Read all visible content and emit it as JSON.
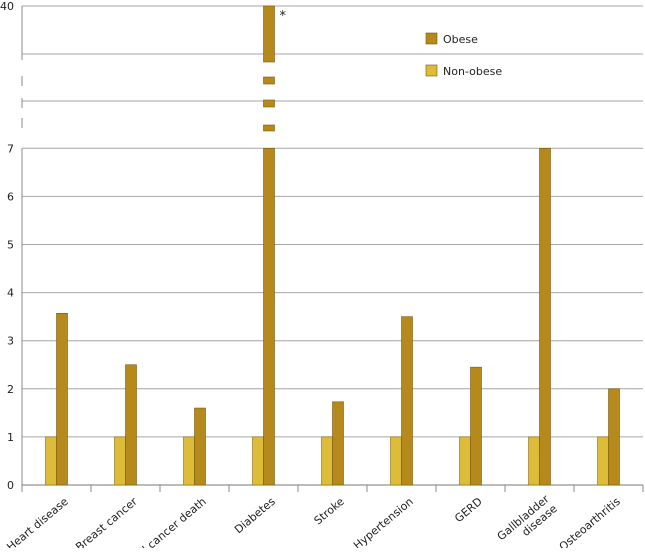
{
  "chart_data": {
    "type": "bar",
    "title": "",
    "xlabel": "",
    "ylabel": "",
    "categories": [
      "Heart disease",
      "Breast cancer",
      "All cancer death",
      "Diabetes",
      "Stroke",
      "Hypertension",
      "GERD",
      "Gallbladder disease",
      "Osteoarthritis"
    ],
    "category_lines": [
      [
        "Heart disease"
      ],
      [
        "Breast cancer"
      ],
      [
        "All cancer death"
      ],
      [
        "Diabetes"
      ],
      [
        "Stroke"
      ],
      [
        "Hypertension"
      ],
      [
        "GERD"
      ],
      [
        "Gallbladder",
        "disease"
      ],
      [
        "Osteoarthritis"
      ]
    ],
    "series": [
      {
        "name": "Non-obese",
        "values": [
          1,
          1,
          1,
          1,
          1,
          1,
          1,
          1,
          1
        ],
        "color": "#dcbc38"
      },
      {
        "name": "Obese",
        "values": [
          3.57,
          2.5,
          1.6,
          40,
          1.73,
          3.5,
          2.45,
          7.0,
          2.0
        ],
        "color": "#b5891c"
      }
    ],
    "ylim": [
      0,
      7
    ],
    "yticks": [
      0,
      1,
      2,
      3,
      4,
      5,
      6,
      7
    ],
    "axis_break": true,
    "broken_top_tick": 40,
    "annotations": [
      {
        "category": "Diabetes",
        "text": "*"
      }
    ],
    "legend": {
      "placement": "top-right",
      "entries": [
        "Obese",
        "Non-obese"
      ]
    },
    "grid": true
  }
}
